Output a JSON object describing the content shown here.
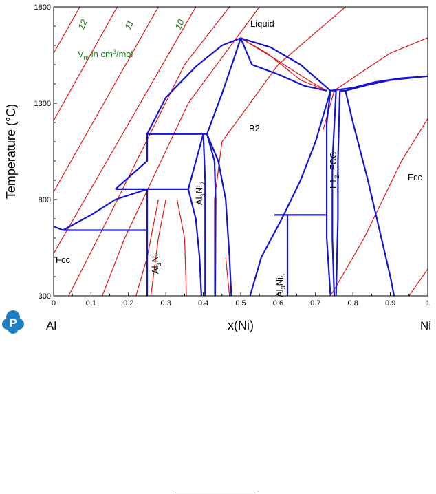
{
  "chart_data": {
    "type": "line",
    "title": "",
    "xlabel": "x(Ni)",
    "ylabel": "Temperature (°C)",
    "xlim": [
      0,
      1
    ],
    "ylim": [
      300,
      1800
    ],
    "x_ticks": [
      "0",
      "0.1",
      "0.2",
      "0.3",
      "0.4",
      "0.5",
      "0.6",
      "0.7",
      "0.8",
      "0.9",
      "1"
    ],
    "y_ticks": [
      "300",
      "800",
      "1300",
      "1800"
    ],
    "x_end_labels": {
      "left": "Al",
      "right": "Ni"
    },
    "grid": false,
    "volume_annotation": {
      "text_v": "V",
      "text_sub": "m",
      "text_rest": " in cm",
      "text_sup": "3",
      "text_unit": "/mol"
    },
    "contour_labels": [
      "12",
      "11",
      "10"
    ],
    "colors": {
      "phase_boundary": "#1414d2",
      "molar_volume_contours": "#e01414",
      "contour_label": "#1a7a1a"
    },
    "phase_labels": {
      "liquid": "Liquid",
      "b2": "B2",
      "fcc_left": "Fcc",
      "fcc_right": "Fcc",
      "al3ni_main": "Al",
      "al3ni_sub": "3",
      "al3ni_tail": "Ni",
      "al3ni2_main": "Al",
      "al3ni2_sub": "3",
      "al3ni2_mid": "Ni",
      "al3ni2_sub2": "2",
      "al3ni5_main": "Al",
      "al3ni5_sub": "3",
      "al3ni5_mid": "Ni",
      "al3ni5_sub2": "5",
      "l12_main": "L1",
      "l12_sub": "2",
      "l12_tail": "_FCC"
    },
    "series": [
      {
        "name": "phase boundaries",
        "lines": [
          [
            [
              0.0,
              660
            ],
            [
              0.025,
              641
            ]
          ],
          [
            [
              0.025,
              641
            ],
            [
              0.25,
              641
            ]
          ],
          [
            [
              0.025,
              641
            ],
            [
              0.1,
              720
            ],
            [
              0.165,
              800
            ],
            [
              0.25,
              854
            ]
          ],
          [
            [
              0.165,
              854
            ],
            [
              0.36,
              854
            ]
          ],
          [
            [
              0.25,
              854
            ],
            [
              0.25,
              300
            ]
          ],
          [
            [
              0.165,
              854
            ],
            [
              0.25,
              1000
            ],
            [
              0.25,
              1140
            ],
            [
              0.41,
              1140
            ]
          ],
          [
            [
              0.25,
              1140
            ],
            [
              0.3,
              1330
            ],
            [
              0.38,
              1490
            ],
            [
              0.45,
              1600
            ],
            [
              0.5,
              1638
            ]
          ],
          [
            [
              0.5,
              1638
            ],
            [
              0.58,
              1590
            ],
            [
              0.66,
              1500
            ],
            [
              0.74,
              1365
            ]
          ],
          [
            [
              0.36,
              854
            ],
            [
              0.4,
              1140
            ]
          ],
          [
            [
              0.36,
              854
            ],
            [
              0.38,
              700
            ],
            [
              0.39,
              500
            ],
            [
              0.395,
              300
            ]
          ],
          [
            [
              0.4,
              1140
            ],
            [
              0.405,
              900
            ],
            [
              0.405,
              300
            ]
          ],
          [
            [
              0.41,
              1140
            ],
            [
              0.43,
              1000
            ],
            [
              0.433,
              800
            ],
            [
              0.432,
              300
            ]
          ],
          [
            [
              0.41,
              1140
            ],
            [
              0.45,
              1350
            ],
            [
              0.48,
              1520
            ],
            [
              0.5,
              1638
            ]
          ],
          [
            [
              0.5,
              1638
            ],
            [
              0.53,
              1500
            ],
            [
              0.6,
              1450
            ],
            [
              0.67,
              1390
            ],
            [
              0.73,
              1365
            ]
          ],
          [
            [
              0.41,
              1140
            ],
            [
              0.44,
              1000
            ],
            [
              0.46,
              800
            ],
            [
              0.47,
              500
            ],
            [
              0.475,
              300
            ]
          ],
          [
            [
              0.74,
              1365
            ],
            [
              0.7,
              1100
            ],
            [
              0.66,
              900
            ],
            [
              0.61,
              700
            ],
            [
              0.555,
              500
            ],
            [
              0.525,
              300
            ]
          ],
          [
            [
              0.59,
              720
            ],
            [
              0.73,
              720
            ]
          ],
          [
            [
              0.625,
              720
            ],
            [
              0.625,
              300
            ]
          ],
          [
            [
              0.74,
              1365
            ],
            [
              0.73,
              1200
            ],
            [
              0.73,
              900
            ],
            [
              0.73,
              600
            ],
            [
              0.74,
              300
            ]
          ],
          [
            [
              0.755,
              1365
            ],
            [
              0.745,
              1000
            ],
            [
              0.745,
              600
            ],
            [
              0.75,
              300
            ]
          ],
          [
            [
              0.765,
              1365
            ],
            [
              0.76,
              1000
            ],
            [
              0.76,
              700
            ],
            [
              0.755,
              300
            ]
          ],
          [
            [
              0.755,
              1365
            ],
            [
              0.745,
              1365
            ]
          ],
          [
            [
              0.78,
              1365
            ],
            [
              0.8,
              1200
            ],
            [
              0.84,
              900
            ],
            [
              0.87,
              650
            ],
            [
              0.9,
              400
            ],
            [
              0.91,
              300
            ]
          ],
          [
            [
              0.765,
              1365
            ],
            [
              0.78,
              1365
            ]
          ],
          [
            [
              0.74,
              1365
            ],
            [
              0.8,
              1380
            ],
            [
              0.86,
              1410
            ],
            [
              0.93,
              1430
            ],
            [
              1.0,
              1440
            ]
          ],
          [
            [
              0.78,
              1365
            ],
            [
              0.84,
              1395
            ],
            [
              0.9,
              1420
            ],
            [
              1.0,
              1440
            ]
          ]
        ]
      },
      {
        "name": "molar volume contours",
        "lines": [
          [
            [
              0.0,
              1560
            ],
            [
              0.07,
              1800
            ]
          ],
          [
            [
              0.0,
              1210
            ],
            [
              0.17,
              1800
            ]
          ],
          [
            [
              0.0,
              840
            ],
            [
              0.28,
              1800
            ]
          ],
          [
            [
              0.0,
              520
            ],
            [
              0.38,
              1800
            ]
          ],
          [
            [
              0.04,
              300
            ],
            [
              0.15,
              720
            ],
            [
              0.35,
              1500
            ],
            [
              0.47,
              1800
            ]
          ],
          [
            [
              0.13,
              300
            ],
            [
              0.19,
              600
            ],
            [
              0.36,
              1300
            ],
            [
              0.55,
              1800
            ]
          ],
          [
            [
              0.22,
              300
            ],
            [
              0.25,
              500
            ],
            [
              0.28,
              800
            ]
          ],
          [
            [
              0.26,
              300
            ],
            [
              0.28,
              600
            ],
            [
              0.3,
              800
            ]
          ],
          [
            [
              0.355,
              300
            ],
            [
              0.35,
              600
            ],
            [
              0.33,
              800
            ]
          ],
          [
            [
              0.43,
              300
            ],
            [
              0.43,
              800
            ],
            [
              0.45,
              1100
            ],
            [
              0.6,
              1500
            ],
            [
              0.78,
              1800
            ]
          ],
          [
            [
              0.47,
              300
            ],
            [
              0.46,
              500
            ]
          ],
          [
            [
              0.72,
              1160
            ],
            [
              0.75,
              1365
            ],
            [
              0.83,
              1470
            ],
            [
              0.9,
              1560
            ],
            [
              1.0,
              1640
            ]
          ],
          [
            [
              0.74,
              300
            ],
            [
              0.83,
              600
            ],
            [
              0.93,
              1000
            ],
            [
              1.0,
              1220
            ]
          ],
          [
            [
              0.95,
              300
            ],
            [
              1.0,
              440
            ]
          ],
          [
            [
              0.5,
              1638
            ],
            [
              0.6,
              1520
            ],
            [
              0.68,
              1420
            ],
            [
              0.73,
              1365
            ]
          ],
          [
            [
              0.5,
              1638
            ],
            [
              0.57,
              1560
            ],
            [
              0.66,
              1420
            ],
            [
              0.73,
              1365
            ]
          ]
        ]
      }
    ]
  }
}
